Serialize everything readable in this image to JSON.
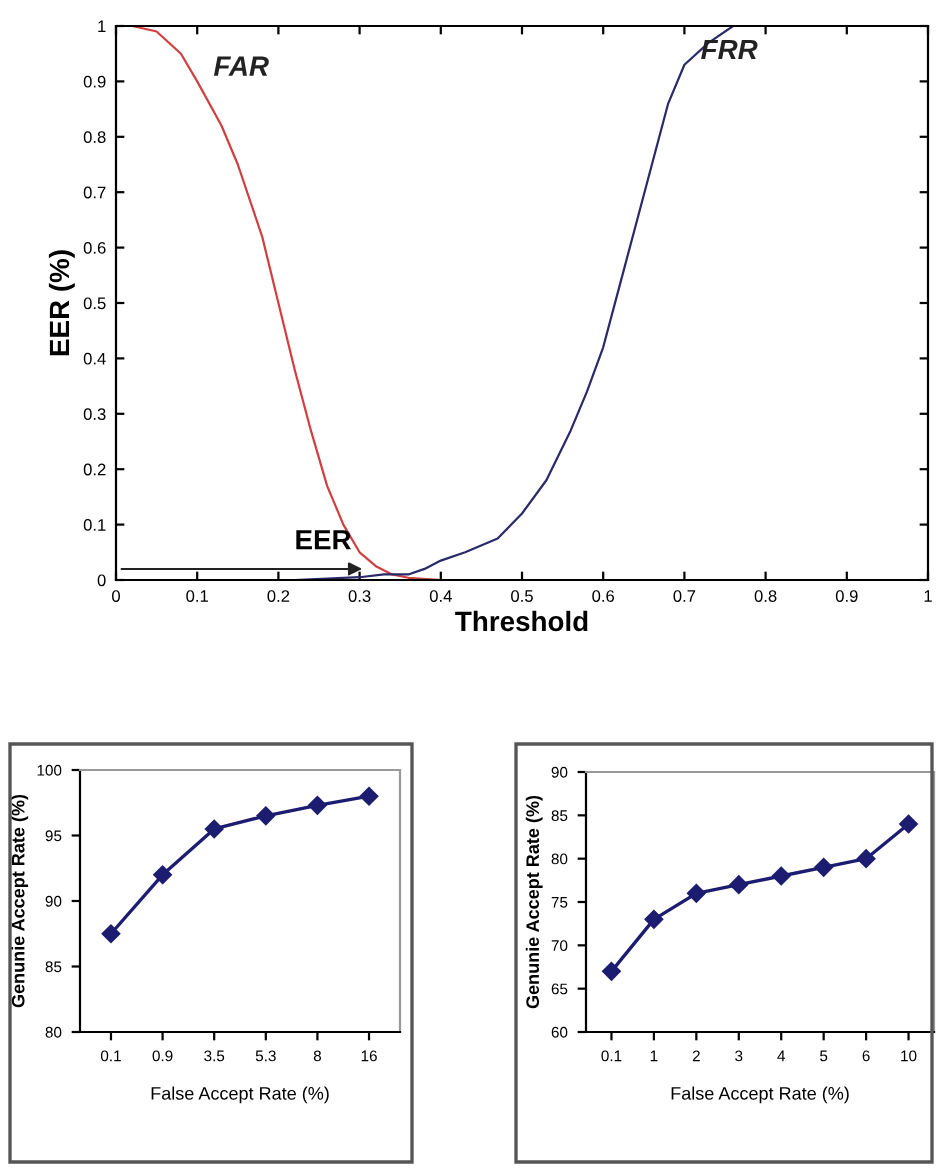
{
  "chart_data": [
    {
      "type": "line",
      "xlabel": "Threshold",
      "ylabel": "EER (%)",
      "xlim": [
        0,
        1
      ],
      "ylim": [
        0,
        1
      ],
      "xticks": [
        0,
        0.1,
        0.2,
        0.3,
        0.4,
        0.5,
        0.6,
        0.7,
        0.8,
        0.9,
        1
      ],
      "yticks": [
        0,
        0.1,
        0.2,
        0.3,
        0.4,
        0.5,
        0.6,
        0.7,
        0.8,
        0.9,
        1
      ],
      "grid": false,
      "marker": "none",
      "line_style": "solid",
      "series": [
        {
          "name": "FAR",
          "color": "#d04040",
          "x": [
            0.02,
            0.05,
            0.08,
            0.1,
            0.13,
            0.15,
            0.18,
            0.2,
            0.22,
            0.24,
            0.26,
            0.28,
            0.3,
            0.32,
            0.34,
            0.36,
            0.4,
            0.45
          ],
          "values": [
            1,
            0.99,
            0.95,
            0.9,
            0.82,
            0.75,
            0.62,
            0.5,
            0.38,
            0.27,
            0.17,
            0.1,
            0.05,
            0.025,
            0.01,
            0.004,
            0,
            0
          ]
        },
        {
          "name": "FRR",
          "color": "#2a2a6a",
          "x": [
            0.22,
            0.3,
            0.33,
            0.36,
            0.38,
            0.4,
            0.43,
            0.47,
            0.5,
            0.53,
            0.56,
            0.58,
            0.6,
            0.62,
            0.64,
            0.66,
            0.68,
            0.7,
            0.73,
            0.76,
            0.78
          ],
          "values": [
            0,
            0.005,
            0.01,
            0.01,
            0.02,
            0.035,
            0.05,
            0.075,
            0.12,
            0.18,
            0.27,
            0.34,
            0.42,
            0.53,
            0.64,
            0.75,
            0.86,
            0.93,
            0.97,
            1,
            1
          ]
        }
      ],
      "annotations": [
        {
          "text": "EER",
          "x": 0.31,
          "y": 0.02
        }
      ]
    },
    {
      "type": "line",
      "xlabel": "False Accept Rate (%)",
      "ylabel": "Genunie Accept Rate (%)",
      "categories": [
        "0.1",
        "0.9",
        "3.5",
        "5.3",
        "8",
        "16"
      ],
      "ylim": [
        80,
        100
      ],
      "yticks": [
        80,
        85,
        90,
        95,
        100
      ],
      "grid": false,
      "marker": "diamond",
      "line_style": "solid",
      "series": [
        {
          "color": "#1c1c70",
          "values": [
            87.5,
            92,
            95.5,
            96.5,
            97.3,
            98
          ]
        }
      ]
    },
    {
      "type": "line",
      "xlabel": "False Accept Rate (%)",
      "ylabel": "Genunie Accept Rate (%)",
      "categories": [
        "0.1",
        "1",
        "2",
        "3",
        "4",
        "5",
        "6",
        "10"
      ],
      "ylim": [
        60,
        90
      ],
      "yticks": [
        60,
        65,
        70,
        75,
        80,
        85,
        90
      ],
      "grid": false,
      "marker": "diamond",
      "line_style": "solid",
      "series": [
        {
          "color": "#1c1c70",
          "values": [
            67,
            73,
            76,
            77,
            78,
            79,
            80,
            84
          ]
        }
      ]
    }
  ]
}
